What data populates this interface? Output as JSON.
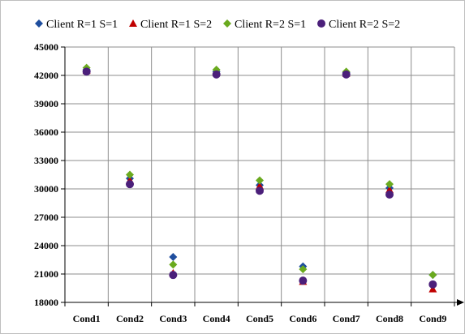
{
  "chart_data": {
    "type": "scatter",
    "categories": [
      "Cond1",
      "Cond2",
      "Cond3",
      "Cond4",
      "Cond5",
      "Cond6",
      "Cond7",
      "Cond8",
      "Cond9"
    ],
    "ylim": [
      18000,
      45000
    ],
    "yticks": [
      18000,
      21000,
      24000,
      27000,
      30000,
      33000,
      36000,
      39000,
      42000,
      45000
    ],
    "grid": true,
    "legend_position": "top",
    "series": [
      {
        "name": "Client R=1 S=1",
        "marker": "diamond",
        "color": "#1f4e9e",
        "values": [
          42600,
          31100,
          22800,
          42400,
          30400,
          21800,
          42300,
          30100,
          20900
        ]
      },
      {
        "name": "Client R=1 S=2",
        "marker": "triangle",
        "color": "#c00000",
        "values": [
          42500,
          30900,
          21100,
          42300,
          30300,
          20200,
          42200,
          29900,
          19400
        ]
      },
      {
        "name": "Client R=2 S=1",
        "marker": "diamond",
        "color": "#6aaa1e",
        "values": [
          42800,
          31500,
          22000,
          42600,
          30900,
          21500,
          42400,
          30500,
          20900
        ]
      },
      {
        "name": "Client R=2 S=2",
        "marker": "circle",
        "color": "#4b1f7a",
        "values": [
          42400,
          30500,
          20900,
          42100,
          29800,
          20300,
          42100,
          29400,
          19900
        ]
      }
    ]
  }
}
